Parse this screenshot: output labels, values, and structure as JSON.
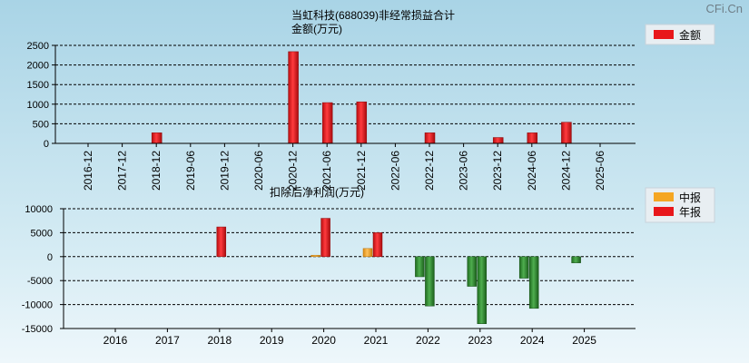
{
  "watermark": "CFi.Cn",
  "chart_data": [
    {
      "type": "bar",
      "title": "当虹科技(688039)非经常损益合计",
      "subtitle": "金额(万元)",
      "legend": [
        {
          "name": "金额",
          "color": "#e8171b"
        }
      ],
      "legend_position": "top-right",
      "categories": [
        "2016-12",
        "2017-12",
        "2018-12",
        "2019-06",
        "2019-12",
        "2020-06",
        "2020-12",
        "2021-06",
        "2021-12",
        "2022-06",
        "2022-12",
        "2023-06",
        "2023-12",
        "2024-06",
        "2024-12",
        "2025-06"
      ],
      "values": [
        0,
        0,
        270,
        0,
        0,
        0,
        2340,
        1040,
        1060,
        0,
        270,
        0,
        150,
        270,
        540,
        0
      ],
      "ylim": [
        0,
        2500
      ],
      "yticks": [
        0,
        500,
        1000,
        1500,
        2000,
        2500
      ],
      "grid": true
    },
    {
      "type": "bar",
      "title": "扣除后净利润(万元)",
      "legend": [
        {
          "name": "中报",
          "color": "#f5a623"
        },
        {
          "name": "年报",
          "color": "#e8171b"
        }
      ],
      "legend_position": "top-right",
      "categories": [
        "2016",
        "2017",
        "2018",
        "2019",
        "2020",
        "2021",
        "2022",
        "2023",
        "2024",
        "2025"
      ],
      "series": [
        {
          "name": "中报",
          "values": [
            null,
            null,
            null,
            null,
            300,
            1700,
            -4200,
            -6200,
            -4500,
            -1300
          ]
        },
        {
          "name": "年报",
          "values": [
            null,
            null,
            6200,
            null,
            8000,
            5000,
            -10300,
            -14000,
            -10800,
            null
          ]
        }
      ],
      "ylim": [
        -15000,
        10000
      ],
      "yticks": [
        -15000,
        -10000,
        -5000,
        0,
        5000,
        10000
      ],
      "grid": true
    }
  ]
}
